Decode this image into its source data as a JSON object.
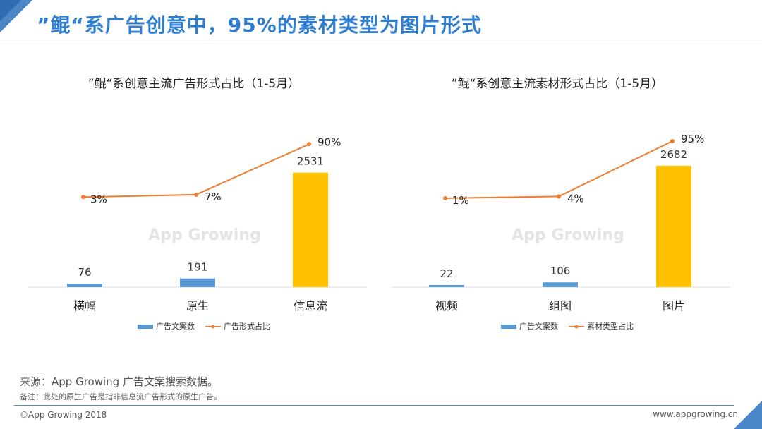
{
  "header": {
    "title": "”鲲“系广告创意中，95%的素材类型为图片形式"
  },
  "colors": {
    "bar": "#5b9bd5",
    "bar_highlight": "#ffc000",
    "line": "#ed7d31",
    "title": "#2f7dd1",
    "axis": "#d9d9d9"
  },
  "watermark": "App Growing",
  "chart_data": [
    {
      "type": "bar",
      "title": "”鲲“系创意主流广告形式占比（1-5月）",
      "categories": [
        "横幅",
        "原生",
        "信息流"
      ],
      "series": [
        {
          "name": "广告文案数",
          "type": "bar",
          "values": [
            76,
            191,
            2531
          ],
          "labels": [
            "76",
            "191",
            "2531"
          ]
        },
        {
          "name": "广告形式占比",
          "type": "line",
          "values": [
            3,
            7,
            90
          ],
          "labels": [
            "3%",
            "7%",
            "90%"
          ]
        }
      ],
      "highlight_index": 2,
      "bar_ylim": [
        0,
        2900
      ],
      "line_ylim": [
        -90,
        110
      ],
      "legend_position": "bottom"
    },
    {
      "type": "bar",
      "title": "”鲲“系创意主流素材形式占比（1-5月）",
      "categories": [
        "视频",
        "组图",
        "图片"
      ],
      "series": [
        {
          "name": "广告文案数",
          "type": "bar",
          "values": [
            22,
            106,
            2682
          ],
          "labels": [
            "22",
            "106",
            "2682"
          ]
        },
        {
          "name": "素材类型占比",
          "type": "line",
          "values": [
            1,
            4,
            95
          ],
          "labels": [
            "1%",
            "4%",
            "95%"
          ]
        }
      ],
      "highlight_index": 2,
      "bar_ylim": [
        0,
        2900
      ],
      "line_ylim": [
        -90,
        110
      ],
      "legend_position": "bottom"
    }
  ],
  "footer": {
    "source": "来源：App Growing 广告文案搜索数据。",
    "note": "备注：此处的原生广告是指非信息流广告形式的原生广告。",
    "copyright": "©App Growing 2018",
    "website": "www.appgrowing.cn"
  }
}
